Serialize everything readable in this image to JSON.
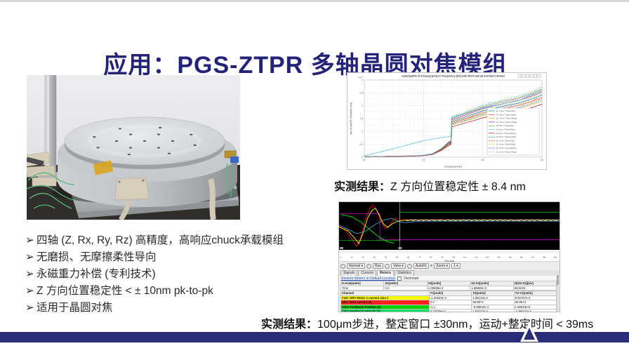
{
  "slide": {
    "title": "应用：PGS-ZTPR 多轴晶圆对焦模组",
    "bullet_marker": "➢",
    "bullets": [
      "四轴 (Z, Rx, Ry, Rz) 高精度，高响应chuck承载模组",
      "无磨损、无摩擦柔性导向",
      "永磁重力补偿 (专利技术)",
      "Z 方向位置稳定性 < ± 10nm pk-to-pk",
      "适用于晶圆对焦"
    ],
    "caption1": {
      "prefix": "实测结果：",
      "text": "Z 方向位置稳定性 ± 8.4 nm"
    },
    "caption2": {
      "prefix": "实测结果：",
      "text": "100μm步进，整定窗口 ±30nm，运动+整定时间 < 39ms"
    }
  },
  "colors": {
    "title_navy": "#23237a",
    "footer_navy": "#2c2d78",
    "caption_text": "#111111",
    "bullet_text": "#2b2b2b"
  },
  "chart_data": [
    {
      "type": "line",
      "title": "sqrt(cps(PS of Zmeas)) [um] vs Frequency [Hz] with Rx=4.2mrad and Ry=1.8mrad",
      "xlabel": "Frequency [Hz]",
      "ylabel": "sqrt of cps(PS of Zmeas) [um]",
      "x_scale": "log",
      "x_range": [
        1,
        1000
      ],
      "xticks": [
        "10⁰",
        "10¹",
        "10²",
        "10³"
      ],
      "ylim": [
        0,
        3
      ],
      "ytick_step": 0.5,
      "y_exponent_label": "×10⁻³",
      "grid": true,
      "legend_position": "lower right",
      "x": [
        1,
        2,
        4,
        7,
        10,
        14,
        20,
        26,
        29,
        30,
        40,
        60,
        100,
        200,
        400,
        700,
        1000
      ],
      "series": [
        {
          "name": "Zc +4mm, Theta 0deg",
          "color": "#0072BD",
          "dash": false,
          "values": [
            0.02,
            0.03,
            0.04,
            0.05,
            0.07,
            0.12,
            0.3,
            0.52,
            0.58,
            1.38,
            1.48,
            1.62,
            1.8,
            1.96,
            2.1,
            2.28,
            2.42
          ]
        },
        {
          "name": "Zc +4mm, Theta 90deg",
          "color": "#D95319",
          "dash": false,
          "values": [
            0.02,
            0.03,
            0.04,
            0.05,
            0.07,
            0.11,
            0.29,
            0.49,
            0.55,
            1.31,
            1.41,
            1.54,
            1.71,
            1.86,
            2.0,
            2.17,
            2.3
          ]
        },
        {
          "name": "Zc +4mm, Theta 180deg",
          "color": "#EDB120",
          "dash": false,
          "values": [
            0.02,
            0.03,
            0.04,
            0.05,
            0.06,
            0.11,
            0.27,
            0.47,
            0.52,
            1.24,
            1.33,
            1.46,
            1.62,
            1.76,
            1.89,
            2.05,
            2.18
          ]
        },
        {
          "name": "Zc +4mm, Theta 270deg",
          "color": "#7E2F8E",
          "dash": false,
          "values": [
            0.02,
            0.03,
            0.04,
            0.05,
            0.07,
            0.13,
            0.32,
            0.55,
            0.61,
            1.45,
            1.55,
            1.7,
            1.89,
            2.06,
            2.21,
            2.39,
            2.54
          ]
        },
        {
          "name": "Zc 0mm, Theta 0deg",
          "color": "#77AC30",
          "dash": false,
          "values": [
            0.02,
            0.03,
            0.04,
            0.06,
            0.08,
            0.13,
            0.33,
            0.57,
            0.64,
            1.52,
            1.63,
            1.78,
            1.98,
            2.16,
            2.31,
            2.51,
            2.66
          ]
        },
        {
          "name": "Zc 0mm, Theta 90deg",
          "color": "#4DBEEE",
          "dash": false,
          "values": [
            0.06,
            0.22,
            0.4,
            0.55,
            0.64,
            0.7,
            0.76,
            0.8,
            0.82,
            1.58,
            1.64,
            1.74,
            1.92,
            2.06,
            2.2,
            2.44,
            2.6
          ]
        },
        {
          "name": "Zc 0mm, Theta 180deg",
          "color": "#A2142F",
          "dash": false,
          "values": [
            0.02,
            0.03,
            0.03,
            0.04,
            0.06,
            0.1,
            0.26,
            0.44,
            0.49,
            1.17,
            1.26,
            1.38,
            1.53,
            1.67,
            1.79,
            1.94,
            2.06
          ]
        },
        {
          "name": "Zc 0mm, Theta 270deg",
          "color": "#0072BD",
          "dash": true,
          "values": [
            0.02,
            0.03,
            0.04,
            0.05,
            0.06,
            0.11,
            0.28,
            0.48,
            0.53,
            1.27,
            1.36,
            1.49,
            1.66,
            1.8,
            1.93,
            2.1,
            2.23
          ]
        },
        {
          "name": "Zc -4mm, Theta 0deg",
          "color": "#D95319",
          "dash": true,
          "values": [
            0.02,
            0.03,
            0.04,
            0.05,
            0.07,
            0.12,
            0.29,
            0.5,
            0.56,
            1.34,
            1.44,
            1.57,
            1.75,
            1.9,
            2.04,
            2.21,
            2.35
          ]
        },
        {
          "name": "Zc -4mm, Theta 90deg",
          "color": "#EDB120",
          "dash": true,
          "values": [
            0.02,
            0.03,
            0.04,
            0.05,
            0.07,
            0.12,
            0.31,
            0.54,
            0.6,
            1.42,
            1.52,
            1.67,
            1.85,
            2.02,
            2.16,
            2.35,
            2.49
          ]
        },
        {
          "name": "Zc -4mm, Theta 180deg",
          "color": "#7E2F8E",
          "dash": true,
          "values": [
            0.02,
            0.03,
            0.04,
            0.05,
            0.08,
            0.13,
            0.32,
            0.56,
            0.63,
            1.49,
            1.6,
            1.75,
            1.94,
            2.12,
            2.27,
            2.46,
            2.61
          ]
        },
        {
          "name": "Zc -4mm, Theta 270deg",
          "color": "#4DBEEE",
          "dash": true,
          "values": [
            0.02,
            0.03,
            0.05,
            0.06,
            0.08,
            0.14,
            0.34,
            0.59,
            0.66,
            1.56,
            1.67,
            1.83,
            2.03,
            2.21,
            2.37,
            2.58,
            2.73
          ]
        }
      ]
    },
    {
      "type": "scope",
      "xlabel": "Time (ms)",
      "xticks": [
        0,
        10,
        20,
        30,
        40,
        50,
        60,
        70,
        80,
        90,
        100,
        110,
        120,
        130,
        140,
        150,
        160,
        170,
        180,
        190
      ],
      "plot_bg": "#000000",
      "traces": [
        {
          "name": "settle-window-magenta",
          "color": "#c800c8",
          "width": 1,
          "points": [
            [
              0,
              24
            ],
            [
              18.5,
              24
            ],
            [
              18.5,
              79
            ],
            [
              100,
              79
            ]
          ]
        },
        {
          "name": "in-position-green-step",
          "color": "#00b400",
          "width": 1,
          "points": [
            [
              0,
              80
            ],
            [
              27.5,
              80
            ],
            [
              27.5,
              21
            ],
            [
              100,
              21
            ]
          ]
        },
        {
          "name": "motion-profile-green",
          "color": "#00d800",
          "width": 1.2,
          "points": [
            [
              1,
              26
            ],
            [
              6,
              31
            ],
            [
              10,
              42
            ],
            [
              14,
              58
            ],
            [
              18,
              73
            ],
            [
              22,
              83
            ],
            [
              25,
              86
            ]
          ]
        },
        {
          "name": "position-error-red",
          "color": "#e60000",
          "width": 1.1,
          "points": [
            [
              0,
              50
            ],
            [
              3,
              60
            ],
            [
              6,
              79
            ],
            [
              8,
              93
            ],
            [
              10,
              72
            ],
            [
              12,
              34
            ],
            [
              14,
              12
            ],
            [
              15.5,
              7
            ],
            [
              17,
              16
            ],
            [
              19,
              40
            ],
            [
              21,
              55
            ],
            [
              23,
              49
            ],
            [
              24.5,
              38
            ],
            [
              26,
              33
            ],
            [
              27,
              40
            ],
            [
              28.5,
              37
            ],
            [
              30,
              37
            ]
          ]
        },
        {
          "name": "position-error-red-settled",
          "type": "noise",
          "color": "#e60000",
          "y": 37,
          "amp": 0.9,
          "from": 30,
          "to": 100,
          "step": 1.6
        },
        {
          "name": "current-yellow",
          "color": "#ffff00",
          "width": 1.1,
          "points": [
            [
              0,
              52
            ],
            [
              4,
              60
            ],
            [
              7,
              75
            ],
            [
              9,
              87
            ],
            [
              11,
              63
            ],
            [
              13,
              33
            ],
            [
              15,
              17
            ],
            [
              16.5,
              13
            ],
            [
              18,
              25
            ],
            [
              20,
              45
            ],
            [
              22,
              53
            ],
            [
              24,
              46
            ],
            [
              26,
              41
            ],
            [
              28,
              39
            ],
            [
              30,
              38
            ]
          ]
        },
        {
          "name": "current-yellow-settled",
          "type": "noise",
          "color": "#ffff00",
          "y": 38,
          "amp": 1.6,
          "from": 30,
          "to": 100,
          "step": 1.2
        },
        {
          "name": "velocity-blue",
          "color": "#3e9fd6",
          "width": 1.1,
          "points": [
            [
              0,
              48
            ],
            [
              4,
              57
            ],
            [
              8,
              66
            ],
            [
              12,
              61
            ],
            [
              16,
              48
            ],
            [
              20,
              38
            ],
            [
              24,
              34
            ],
            [
              27,
              41
            ],
            [
              30,
              43
            ],
            [
              34,
              41
            ],
            [
              40,
              40
            ],
            [
              50,
              40
            ],
            [
              65,
              40
            ],
            [
              80,
              40
            ],
            [
              100,
              40
            ]
          ]
        },
        {
          "name": "white-settled",
          "type": "noise",
          "color": "#dddddd",
          "y": 37.5,
          "amp": 0.5,
          "from": 30,
          "to": 100,
          "step": 2.0
        },
        {
          "name": "cursor",
          "color": "#bfbfbf",
          "width": 0.8,
          "points": [
            [
              27.5,
              0
            ],
            [
              27.5,
              100
            ]
          ]
        }
      ]
    }
  ],
  "scope_ui": {
    "toolbar": {
      "buttons": [
        "Normal ▾",
        "Run",
        "View ▾",
        "AutoFit",
        "Zoom ▾",
        "1 ▾"
      ],
      "led_color": "#22b14c"
    },
    "tabs": [
      "Signals",
      "Cursors",
      "Meters",
      "Statistics"
    ],
    "active_tab": "Meters",
    "restore_link": "Restore Meters to Default Location",
    "decimate_label": "Decimate",
    "xmeter": {
      "headers": [
        "X-Axis[units]",
        "X1[units]",
        "X2[units]",
        "X2-X1[units]",
        "1/(X2-X1)[1/s]"
      ],
      "values": [
        "Time",
        "0.0",
        "1.66555e-2",
        "1.66555e-2",
        "59.8440"
      ]
    },
    "channel_table": {
      "headers": [
        "Channel",
        "Y1[units]",
        "Y2[units]",
        "Y2-Y1[units]"
      ],
      "rows": [
        {
          "label": "CH0: DRV Motor x-current axis 0",
          "color": "#ffff00",
          "y1": "-4.30633e-2",
          "y2": "4.36134e-2",
          "dy": "8.66767e-2"
        },
        {
          "label": "CH1: DRV current (0)",
          "color": "#ff2020",
          "y1": "0.0",
          "y2": "99.9974",
          "dy": "99.9974"
        },
        {
          "label": "CH2: Feedback Position (0)",
          "color": "#00d000",
          "y1": "-0.1",
          "y2": "-9.99832e-2",
          "dy": "1.68013e-5"
        },
        {
          "label": "CH3: Feedback Velocity (0)",
          "color": "#00e060",
          "y1": "4.43038e-3",
          "y2": "1.54024e-3",
          "dy": "-2.89014e-3"
        },
        {
          "label": "CH4: Position Error (0)",
          "color": "#e6c48c",
          "y1": "-1.31748e-4",
          "y2": "1.67847e-3",
          "dy": "1.81022e-3"
        },
        {
          "label": "CH5: REF POS (0)",
          "color": "#d400d4",
          "y1": "-1.0",
          "y2": "0.0",
          "dy": "1.0"
        },
        {
          "label": "CH6: REF OUT (0)",
          "color": "#00c800",
          "y1": "0.0",
          "y2": "1.0",
          "dy": "1.0"
        },
        {
          "label": "CH7: Position Error (0)",
          "color": "#7fd4ee",
          "y1": "-1.31748e-4",
          "y2": "1.67847e-3",
          "dy": "1.81022e-3"
        }
      ]
    }
  }
}
